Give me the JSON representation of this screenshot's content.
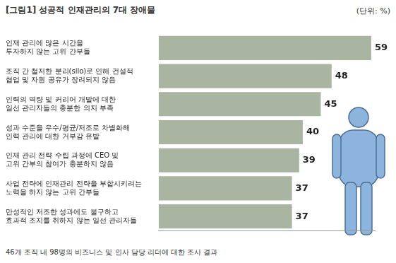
{
  "chart_data": {
    "type": "bar",
    "orientation": "horizontal",
    "title": "[그림1] 성공적 인재관리의 7대 장애물",
    "x_label": "(단위: %)",
    "annotations": [
      "46개 조직 내 98명의 비즈니스 및 인사 담당 리더에 대한 조사 결과"
    ],
    "categories": [
      [
        "인재 관리에 많은 시간을",
        "투자하지 않는 고위 간부들"
      ],
      [
        "조직 간 철저한 분리(silo)로 인해 건설적",
        "협업 및 자원 공유가 장려되지 않음"
      ],
      [
        "인력의 역량 및 커리어 개발에 대한",
        "일선 관리자들의 충분한 의지 부족"
      ],
      [
        "성과 수준을 우수/평균/저조로 차별화해",
        "인력 관리에 대한 거부감 유발"
      ],
      [
        "인재 관리 전략 수립 과정에 CEO 및",
        "고위 간부의 참여가 충분하지 않음"
      ],
      [
        "사업 전략에 인재관리 전략을 부합시키려는",
        "노력을 하지 않는 고위 간부들"
      ],
      [
        "만성적인 저조한 성과에도 불구하고",
        "효과적 조치를 취하지 않는 일선 관리자들"
      ]
    ],
    "values": [
      59,
      48,
      45,
      40,
      39,
      37,
      37
    ],
    "color": "#a9b5a0",
    "xlim": [
      0,
      60
    ],
    "grid": false,
    "data_labels": true,
    "tick_labels": "y"
  }
}
